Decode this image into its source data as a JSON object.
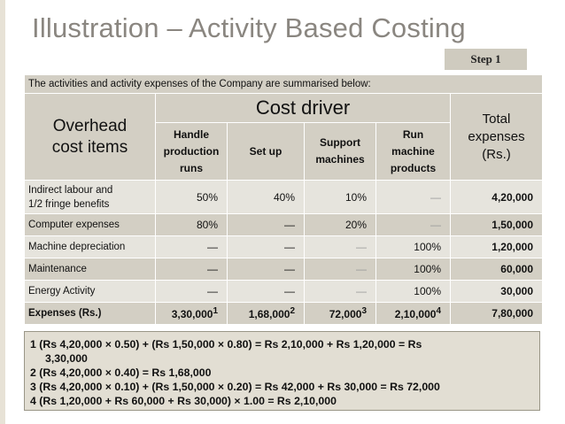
{
  "title": "Illustration – Activity Based Costing",
  "step_label": "Step 1",
  "intro": "The activities and activity expenses of the Company are summarised below:",
  "headers": {
    "overhead_line1": "Overhead",
    "overhead_line2": "cost items",
    "cost_driver": "Cost driver",
    "total_line1": "Total",
    "total_line2": "expenses",
    "total_line3": "(Rs.)",
    "handle_line1": "Handle",
    "handle_line2": "production",
    "handle_line3": "runs",
    "setup": "Set up",
    "support_line1": "Support",
    "support_line2": "machines",
    "run_line1": "Run",
    "run_line2": "machine",
    "run_line3": "products"
  },
  "rows": [
    {
      "label_line1": "Indirect  labour and",
      "label_line2": "1/2 fringe benefits",
      "handle": "50%",
      "setup": "40%",
      "support": "10%",
      "run": "—",
      "total": "4,20,000"
    },
    {
      "label": "Computer expenses",
      "handle": "80%",
      "setup": "—",
      "support": "20%",
      "run": "—",
      "total": "1,50,000"
    },
    {
      "label": "Machine depreciation",
      "handle": "—",
      "setup": "—",
      "support": "—",
      "run": "100%",
      "total": "1,20,000"
    },
    {
      "label": "Maintenance",
      "handle": "—",
      "setup": "—",
      "support": "—",
      "run": "100%",
      "total": "60,000"
    },
    {
      "label": "Energy Activity",
      "handle": "—",
      "setup": "—",
      "support": "—",
      "run": "100%",
      "total": "30,000"
    }
  ],
  "expenses_row": {
    "label": "Expenses (Rs.)",
    "handle": "3,30,000",
    "handle_sup": "1",
    "setup": "1,68,000",
    "setup_sup": "2",
    "support": "72,000",
    "support_sup": "3",
    "run": "2,10,000",
    "run_sup": "4",
    "total": "7,80,000"
  },
  "notes": {
    "n1_line1": "1   (Rs  4,20,000  ×  0.50)  +  (Rs  1,50,000  ×  0.80)  =  Rs  2,10,000  +  Rs  1,20,000  =  Rs",
    "n1_line2": "3,30,000",
    "n2": "2   (Rs 4,20,000 × 0.40) = Rs 1,68,000",
    "n3": "3   (Rs 4,20,000 × 0.10) + (Rs 1,50,000 × 0.20) = Rs 42,000 + Rs 30,000 = Rs 72,000",
    "n4": "4   (Rs 1,20,000 + Rs 60,000 + Rs 30,000) × 1.00 = Rs 2,10,000"
  }
}
